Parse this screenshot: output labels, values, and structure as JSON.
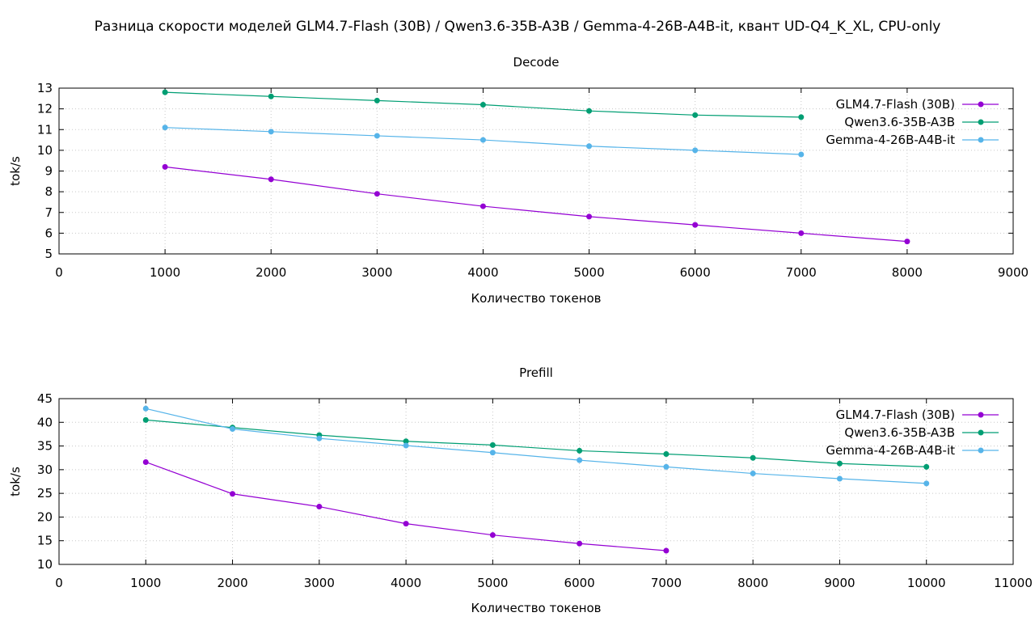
{
  "figure": {
    "title": "Разница скорости моделей GLM4.7-Flash (30B) / Qwen3.6-35B-A3B / Gemma-4-26B-A4B-it, квант UD-Q4_K_XL, CPU-only"
  },
  "colors": {
    "GLM4.7-Flash (30B)": "#9400d3",
    "Qwen3.6-35B-A3B": "#009e73",
    "Gemma-4-26B-A4B-it": "#56b4e9"
  },
  "chart_data": [
    {
      "type": "line",
      "title": "Decode",
      "xlabel": "Количество токенов",
      "ylabel": "tok/s",
      "xlim": [
        0,
        9000
      ],
      "ylim": [
        5,
        13
      ],
      "xticks": [
        0,
        1000,
        2000,
        3000,
        4000,
        5000,
        6000,
        7000,
        8000,
        9000
      ],
      "yticks": [
        5,
        6,
        7,
        8,
        9,
        10,
        11,
        12,
        13
      ],
      "grid": true,
      "legend_position": "top-right",
      "series": [
        {
          "name": "GLM4.7-Flash (30B)",
          "x": [
            1000,
            2000,
            3000,
            4000,
            5000,
            6000,
            7000,
            8000
          ],
          "y": [
            9.2,
            8.6,
            7.9,
            7.3,
            6.8,
            6.4,
            6.0,
            5.6
          ]
        },
        {
          "name": "Qwen3.6-35B-A3B",
          "x": [
            1000,
            2000,
            3000,
            4000,
            5000,
            6000,
            7000
          ],
          "y": [
            12.8,
            12.6,
            12.4,
            12.2,
            11.9,
            11.7,
            11.6
          ]
        },
        {
          "name": "Gemma-4-26B-A4B-it",
          "x": [
            1000,
            2000,
            3000,
            4000,
            5000,
            6000,
            7000
          ],
          "y": [
            11.1,
            10.9,
            10.7,
            10.5,
            10.2,
            10.0,
            9.8
          ]
        }
      ]
    },
    {
      "type": "line",
      "title": "Prefill",
      "xlabel": "Количество токенов",
      "ylabel": "tok/s",
      "xlim": [
        0,
        11000
      ],
      "ylim": [
        10,
        45
      ],
      "xticks": [
        0,
        1000,
        2000,
        3000,
        4000,
        5000,
        6000,
        7000,
        8000,
        9000,
        10000,
        11000
      ],
      "yticks": [
        10,
        15,
        20,
        25,
        30,
        35,
        40,
        45
      ],
      "grid": true,
      "legend_position": "top-right",
      "series": [
        {
          "name": "GLM4.7-Flash (30B)",
          "x": [
            1000,
            2000,
            3000,
            4000,
            5000,
            6000,
            7000
          ],
          "y": [
            31.6,
            24.9,
            22.2,
            18.6,
            16.2,
            14.4,
            12.9
          ]
        },
        {
          "name": "Qwen3.6-35B-A3B",
          "x": [
            1000,
            2000,
            3000,
            4000,
            5000,
            6000,
            7000,
            8000,
            9000,
            10000
          ],
          "y": [
            40.5,
            38.9,
            37.3,
            36.0,
            35.2,
            34.0,
            33.3,
            32.5,
            31.3,
            30.6
          ]
        },
        {
          "name": "Gemma-4-26B-A4B-it",
          "x": [
            1000,
            2000,
            3000,
            4000,
            5000,
            6000,
            7000,
            8000,
            9000,
            10000
          ],
          "y": [
            42.9,
            38.6,
            36.6,
            35.1,
            33.6,
            32.0,
            30.6,
            29.2,
            28.1,
            27.1
          ]
        }
      ]
    }
  ]
}
